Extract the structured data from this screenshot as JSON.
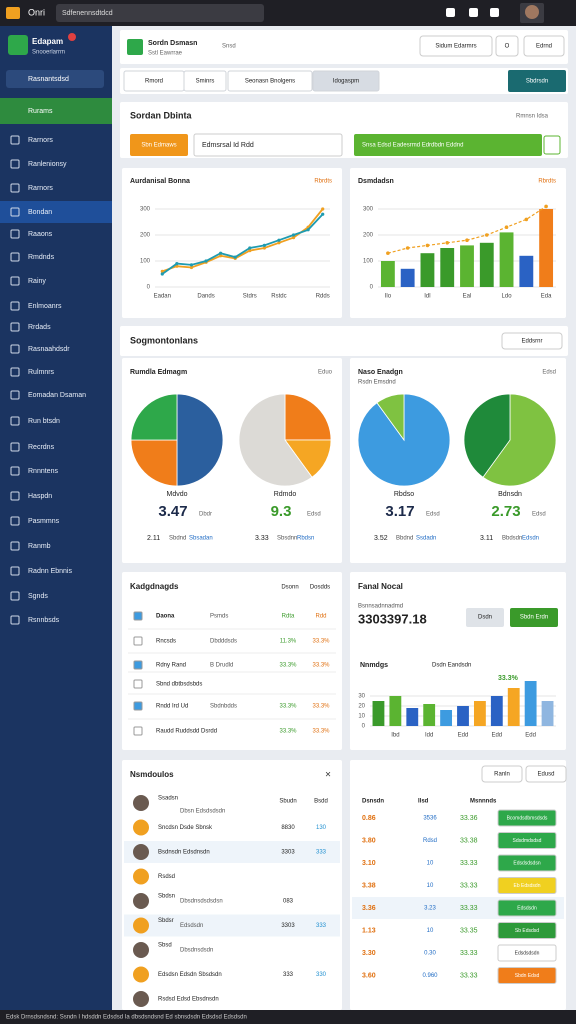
{
  "topbar": {
    "app": "Onri",
    "search": "Sdfenennsdtdcd"
  },
  "sidebar": {
    "brand": "Edapam",
    "brand_sub": "Snooerlarrm",
    "selector": "Rasnantsdsd",
    "active": "Rurams",
    "active_index": 3,
    "items": [
      "Rarnors",
      "Ranlenionsy",
      "Rarnors",
      "Bondan",
      "Raaons",
      "Rmdnds",
      "Rainy",
      "Enlmoanrs",
      "Rrdads",
      "Rasnaahdsdr",
      "Rulmnrs",
      "Eomadan Dsaman",
      "Run btsdn",
      "Recrdns",
      "Rnnntens",
      "Haspdn",
      "Pasmmns",
      "Ranmb",
      "Radnn Ebnnis",
      "Sgnds",
      "Rsnnbsds"
    ]
  },
  "header": {
    "title": "Sordn Dsmasn",
    "subtitle": "Sstl Eawrrae",
    "tag": "Snsd",
    "buttons": [
      "Sidum Edarmrs",
      "O",
      "Edrnd"
    ]
  },
  "tabs": {
    "items": [
      "Rmord",
      "Sminrs",
      "Seonasn Bnolgens",
      "Idogaspm"
    ],
    "action": "Sbdrsdn"
  },
  "search_panel": {
    "title": "Sordan Dbinta",
    "link": "Rmnsn Idsa",
    "button": "Sbn Edmaws",
    "input": "Edmsrsal Id Rdd",
    "banner": "Snsa Edsd Eadesrmd Edrdbdn Eddnd"
  },
  "line_chart": {
    "type": "line",
    "title": "Aurdanisal Bonna",
    "legend": "Rbrdts",
    "grid": true,
    "categories": [
      "Eadan",
      null,
      null,
      "Dands",
      null,
      null,
      "Stdrs",
      null,
      "Rstdc",
      null,
      null,
      "Rdds"
    ],
    "series": [
      {
        "color": "#f0a020",
        "values": [
          60,
          80,
          75,
          95,
          120,
          110,
          140,
          150,
          170,
          190,
          230,
          300
        ]
      },
      {
        "color": "#1f9bb0",
        "values": [
          50,
          90,
          85,
          100,
          130,
          115,
          150,
          160,
          180,
          200,
          220,
          280
        ]
      }
    ],
    "ylim": [
      0,
      350
    ],
    "yticks": [
      0,
      100,
      200,
      300
    ]
  },
  "bar_chart": {
    "type": "bar",
    "title": "Dsmdadsn",
    "legend": "Rbrdts",
    "grid": true,
    "categories": [
      "Ilo",
      null,
      "Idl",
      null,
      "Eal",
      null,
      "Ldo",
      null,
      "Eda"
    ],
    "values": [
      100,
      70,
      130,
      150,
      160,
      170,
      210,
      120,
      300
    ],
    "colors": [
      "#5bb431",
      "#2a62c4",
      "#3a9a2a",
      "#3a9a2a",
      "#5bb431",
      "#3a9a2a",
      "#5bb431",
      "#2a62c4",
      "#f07d1a"
    ],
    "trend": [
      130,
      150,
      160,
      170,
      180,
      200,
      230,
      260,
      310
    ],
    "trend_color": "#f0a020",
    "ylim": [
      0,
      350
    ],
    "yticks": [
      0,
      100,
      200,
      300
    ]
  },
  "segments": {
    "title": "Sogmontonlans",
    "button": "Eddsrnr"
  },
  "pie_left": {
    "title": "Rumdla Edmagm",
    "link": "Eduo",
    "pies": [
      {
        "type": "pie",
        "values": [
          50,
          25,
          25
        ],
        "colors": [
          "#2b5f9e",
          "#f07d1a",
          "#2ea84a"
        ],
        "label": "Mdvdo",
        "stat": "3.47",
        "unit": "Dbdr",
        "foot_value": "2.11",
        "foot_label": "Sbdnd",
        "foot_link": "Sbsadan"
      },
      {
        "type": "pie",
        "values": [
          25,
          15,
          60
        ],
        "colors": [
          "#f07d1a",
          "#f5a623",
          "#dcdad6"
        ],
        "label": "Rdmdo",
        "stat": "9.3",
        "unit": "Edsd",
        "foot_value": "3.33",
        "foot_label": "Sbsdnn",
        "foot_link": "Rbdsn"
      }
    ]
  },
  "pie_right": {
    "title": "Naso Enadgn",
    "subtitle": "Rsdn Emsdnd",
    "link": "Edsd",
    "pies": [
      {
        "type": "pie",
        "values": [
          90,
          10
        ],
        "colors": [
          "#3d9be0",
          "#7fc241"
        ],
        "label": "Rbdso",
        "stat": "3.17",
        "unit": "Edsd",
        "foot_value": "3.52",
        "foot_label": "Bbdnd",
        "foot_link": "Ssdadn"
      },
      {
        "type": "pie",
        "values": [
          60,
          40
        ],
        "colors": [
          "#7fc241",
          "#1f8a3a"
        ],
        "label": "Bdnsdn",
        "stat": "2.73",
        "unit": "Edsd",
        "foot_value": "3.11",
        "foot_label": "Bbdsdn",
        "foot_link": "Edsdn"
      }
    ]
  },
  "kpi_table": {
    "title": "Kadgdnagds",
    "columns": [
      "Dsonn",
      "Dosdds"
    ],
    "rows": [
      {
        "name": "Daona",
        "sub": "Psmds",
        "a": "Rdta",
        "b": "Rdd"
      },
      {
        "name": "Rncsds",
        "sub": "Dbdddsds",
        "a": "11.3%",
        "b": "33.3%"
      },
      {
        "name": "Rdny Rand",
        "sub": "B Drudld",
        "a": "33.3%",
        "b": "33.3%"
      },
      {
        "name": "Sbnd dbtbsdsbds"
      },
      {
        "name": "Rndd Ird Ud",
        "sub": "Sbdnbdds",
        "a": "33.3%",
        "b": "33.3%"
      },
      {
        "name": "Raudd Ruddsdd Dsrdd",
        "a": "33.3%",
        "b": "33.3%"
      }
    ]
  },
  "final_panel": {
    "title": "Fanal Nocal",
    "label": "Bsnnsadnnadmd",
    "value": "3303397.18",
    "buttons": [
      "Dsdn",
      "Sbdn Erdn"
    ],
    "chart": {
      "type": "bar",
      "title": "Nnmdgs",
      "legend": "Dsdn Eandsdn",
      "annotation": "33.3%",
      "grid": true,
      "categories": [
        null,
        "Ibd",
        null,
        "Idd",
        null,
        "Edd",
        null,
        "Edd",
        null,
        "Edd",
        null
      ],
      "values": [
        25,
        30,
        18,
        22,
        16,
        20,
        25,
        30,
        38,
        45,
        25
      ],
      "colors": [
        "#3a9a2a",
        "#5bb431",
        "#2a62c4",
        "#5bb431",
        "#3d9be0",
        "#2a62c4",
        "#f5a623",
        "#2a62c4",
        "#f5a623",
        "#3d9be0",
        "#8fb6e0"
      ],
      "ylim": [
        0,
        50
      ],
      "yticks": [
        0,
        10,
        20,
        30
      ]
    }
  },
  "list_panel": {
    "title": "Nsmdoulos",
    "columns": [
      "Sbudn",
      "Bsdd"
    ],
    "rows": [
      {
        "name": "Ssadsn",
        "sub": "Dbsn Edsdsdsdn"
      },
      {
        "name": "Sncdsn Dsde Sbnsk",
        "a": "8830",
        "b": "130"
      },
      {
        "name": "Bsdnsdn Edsdnsdn",
        "a": "3303",
        "b": "333"
      },
      {
        "name": "Rsdsd"
      },
      {
        "name": "Sbdsn",
        "sub": "Dbsdnsdsdsdsn",
        "a": "083"
      },
      {
        "name": "Sbdsr",
        "sub": "Edsdsdn",
        "a": "3303",
        "b": "333"
      },
      {
        "name": "Sbsd",
        "sub": "Dbsdnsdsdn"
      },
      {
        "name": "Edsdsn Edsdn Sbsdsdn",
        "a": "333",
        "b": "330"
      },
      {
        "name": "Rsdsd Edsd Ebsdnsdn"
      }
    ]
  },
  "table_panel": {
    "buttons": [
      "Ranln",
      "Edusd"
    ],
    "columns": [
      "Dsnsdn",
      "Ilsd",
      "Msnnnds"
    ],
    "rows": [
      {
        "a": "0.86",
        "b": "3536",
        "c": "33.36",
        "d": "Bcomdsdbmsdsds",
        "badge": "#2ea84a"
      },
      {
        "a": "3.80",
        "b": "Rdsd",
        "c": "33.38",
        "d": "Sdsdmdsdsd",
        "badge": "#2ea84a"
      },
      {
        "a": "3.10",
        "b": "10",
        "c": "33.33",
        "d": "Edsdsdsdsn",
        "badge": "#2ea84a"
      },
      {
        "a": "3.38",
        "b": "10",
        "c": "33.33",
        "d": "Eb Edsdsdn",
        "badge": "#f0d020"
      },
      {
        "a": "3.36",
        "b": "3.23",
        "c": "33.33",
        "d": "Edsdsdn",
        "badge": "#2ea84a"
      },
      {
        "a": "1.13",
        "b": "10",
        "c": "33.35",
        "d": "Sb Edsdsd",
        "badge": "#2e9a3a"
      },
      {
        "a": "3.30",
        "b": "0.30",
        "c": "33.33",
        "d": "Edsdsdsdn",
        "badge": "#ffffff"
      },
      {
        "a": "3.60",
        "b": "0.960",
        "c": "33.33",
        "d": "Sbdn Edsd",
        "badge": "#f07d1a"
      }
    ]
  },
  "status": "Edsk Drnsdsndsnd: Ssndn I hdsddn Edsdsd Ia dbsdsndsnd Ed sbnsdsdn Edsdsd Edsdsdn"
}
